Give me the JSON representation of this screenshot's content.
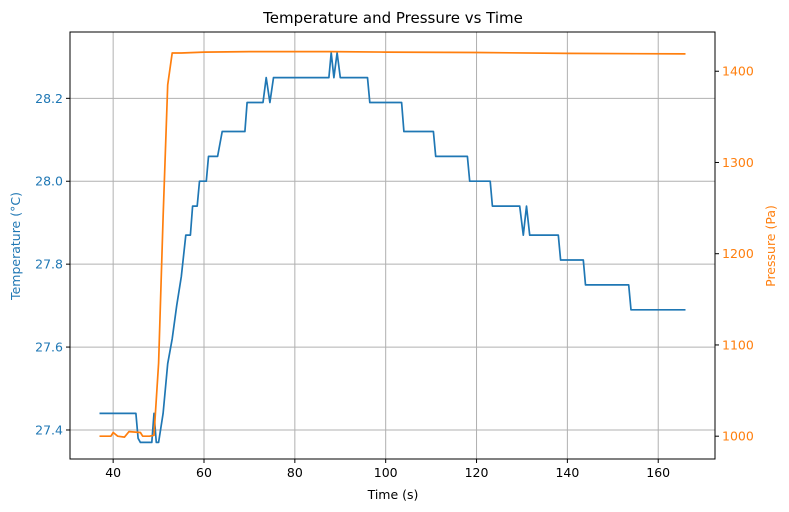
{
  "chart_data": {
    "type": "line",
    "title": "Temperature and Pressure vs Time",
    "xlabel": "Time (s)",
    "ylabel_left": "Temperature (°C)",
    "ylabel_right": "Pressure (Pa)",
    "xlim": [
      30.5,
      172.5
    ],
    "ylim_left": [
      27.33,
      28.36
    ],
    "ylim_right": [
      975,
      1443
    ],
    "xticks": [
      40,
      60,
      80,
      100,
      120,
      140,
      160
    ],
    "yticks_left": [
      27.4,
      27.6,
      27.8,
      28.0,
      28.2
    ],
    "yticks_right": [
      1000,
      1100,
      1200,
      1300,
      1400
    ],
    "grid": true,
    "colors": {
      "temperature": "#1f77b4",
      "pressure": "#ff7f0e"
    },
    "series": [
      {
        "axis": "left",
        "color": "#1f77b4",
        "points": [
          [
            37,
            27.44
          ],
          [
            45,
            27.44
          ],
          [
            45.5,
            27.38
          ],
          [
            46,
            27.37
          ],
          [
            48.5,
            27.37
          ],
          [
            49,
            27.44
          ],
          [
            49.5,
            27.37
          ],
          [
            50,
            27.37
          ],
          [
            51,
            27.44
          ],
          [
            52,
            27.56
          ],
          [
            53,
            27.62
          ],
          [
            54,
            27.7
          ],
          [
            55,
            27.77
          ],
          [
            56,
            27.87
          ],
          [
            57,
            27.87
          ],
          [
            57.5,
            27.94
          ],
          [
            58.5,
            27.94
          ],
          [
            59,
            28.0
          ],
          [
            60.5,
            28.0
          ],
          [
            61,
            28.06
          ],
          [
            63,
            28.06
          ],
          [
            64,
            28.12
          ],
          [
            69,
            28.12
          ],
          [
            69.5,
            28.19
          ],
          [
            73,
            28.19
          ],
          [
            73.7,
            28.25
          ],
          [
            74.5,
            28.19
          ],
          [
            75.3,
            28.25
          ],
          [
            87.5,
            28.25
          ],
          [
            88,
            28.31
          ],
          [
            88.6,
            28.25
          ],
          [
            89.3,
            28.31
          ],
          [
            90,
            28.25
          ],
          [
            96,
            28.25
          ],
          [
            96.5,
            28.19
          ],
          [
            103.5,
            28.19
          ],
          [
            104,
            28.12
          ],
          [
            110.5,
            28.12
          ],
          [
            111,
            28.06
          ],
          [
            118,
            28.06
          ],
          [
            118.5,
            28.0
          ],
          [
            123,
            28.0
          ],
          [
            123.5,
            27.94
          ],
          [
            129.5,
            27.94
          ],
          [
            130.3,
            27.87
          ],
          [
            131,
            27.94
          ],
          [
            131.7,
            27.87
          ],
          [
            138,
            27.87
          ],
          [
            138.5,
            27.81
          ],
          [
            143.5,
            27.81
          ],
          [
            144,
            27.75
          ],
          [
            153.5,
            27.75
          ],
          [
            154,
            27.69
          ],
          [
            166,
            27.69
          ]
        ]
      },
      {
        "axis": "right",
        "color": "#ff7f0e",
        "points": [
          [
            37,
            1000
          ],
          [
            39.5,
            1000
          ],
          [
            40,
            1004
          ],
          [
            41,
            1000
          ],
          [
            42.5,
            999
          ],
          [
            43.5,
            1005
          ],
          [
            46,
            1004
          ],
          [
            46.5,
            1000
          ],
          [
            48,
            1000
          ],
          [
            49,
            1001
          ],
          [
            50,
            1080
          ],
          [
            51,
            1240
          ],
          [
            52,
            1385
          ],
          [
            53,
            1420
          ],
          [
            55,
            1420
          ],
          [
            60,
            1421
          ],
          [
            70,
            1421.5
          ],
          [
            88,
            1421.5
          ],
          [
            100,
            1421
          ],
          [
            120,
            1420.5
          ],
          [
            140,
            1419.5
          ],
          [
            166,
            1419
          ]
        ]
      }
    ]
  }
}
